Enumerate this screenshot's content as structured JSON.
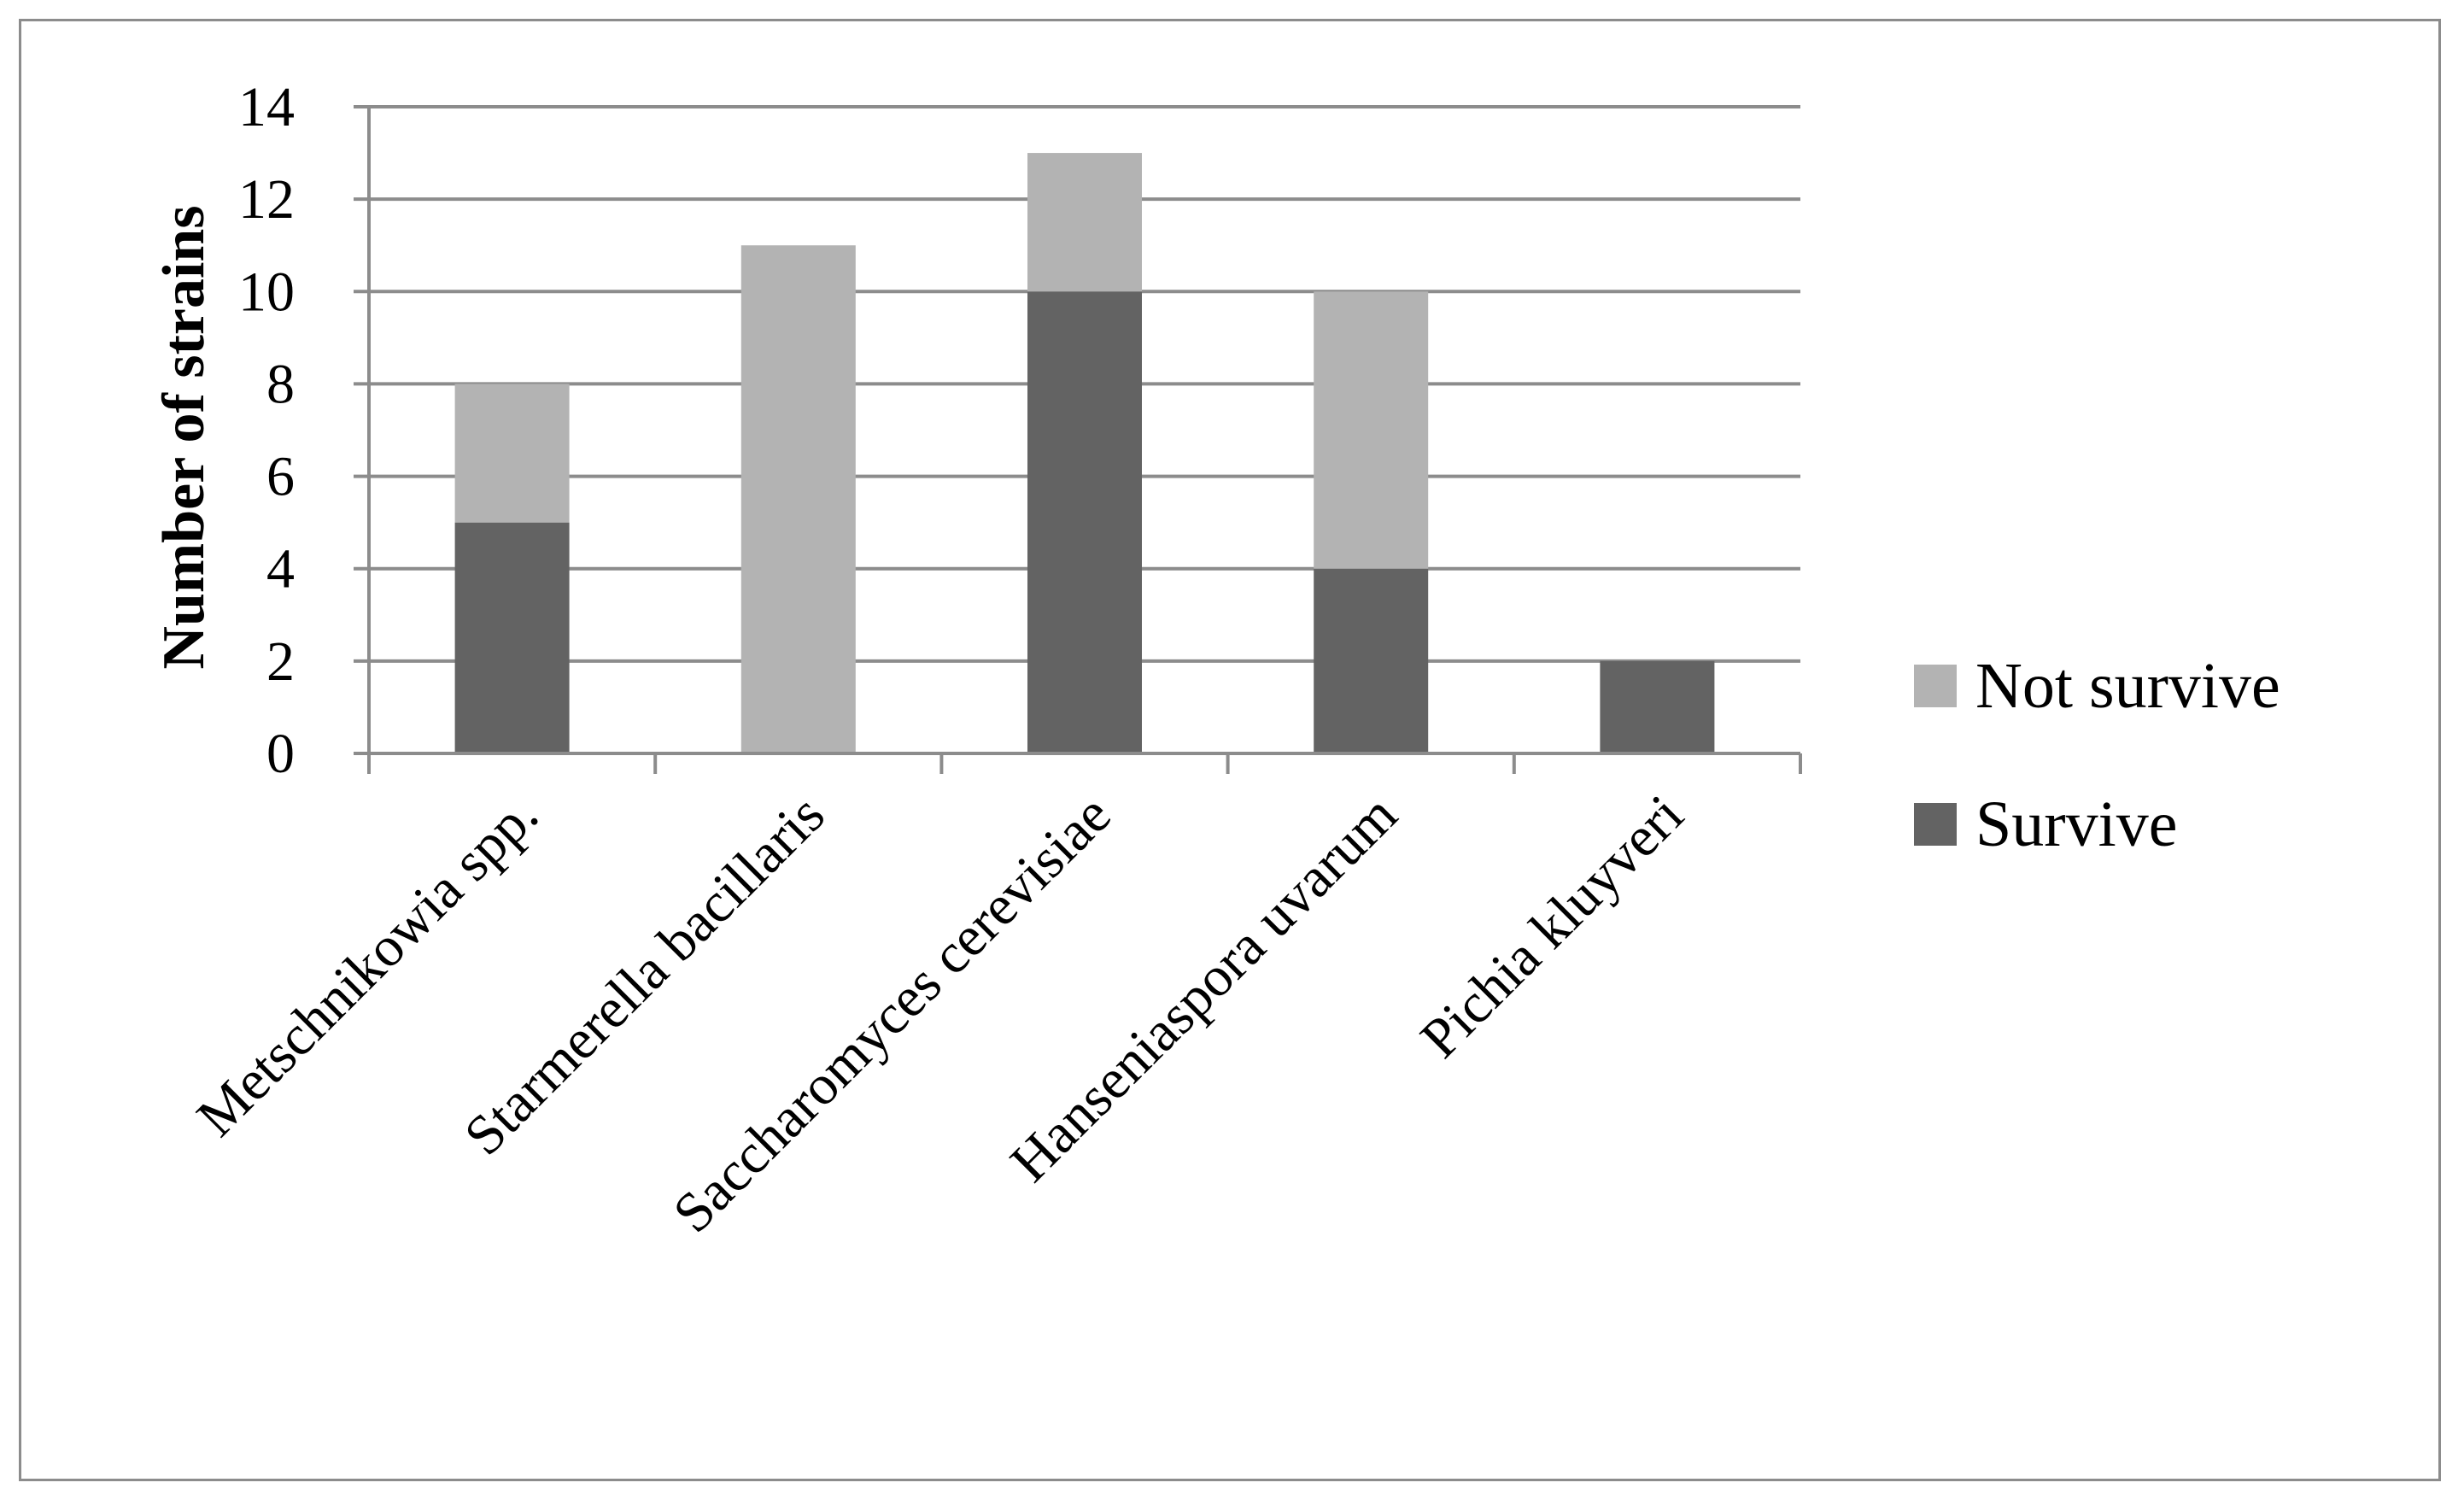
{
  "chart_data": {
    "type": "bar",
    "stacked": true,
    "title": "",
    "xlabel": "",
    "ylabel": "Number of strains",
    "ylim": [
      0,
      14
    ],
    "yticks": [
      0,
      2,
      4,
      6,
      8,
      10,
      12,
      14
    ],
    "grid": true,
    "legend_position": "right",
    "categories": [
      "Metschnikowia spp.",
      "Starmerella bacillaris",
      "Saccharomyces cerevisiae",
      "Hanseniaspora uvarum",
      "Pichia kluyveri"
    ],
    "series": [
      {
        "name": "Survive",
        "color": "#636363",
        "values": [
          5,
          0,
          10,
          4,
          2
        ]
      },
      {
        "name": "Not survive",
        "color": "#b3b3b3",
        "values": [
          3,
          11,
          3,
          6,
          0
        ]
      }
    ],
    "legend_order": [
      "Not survive",
      "Survive"
    ]
  }
}
